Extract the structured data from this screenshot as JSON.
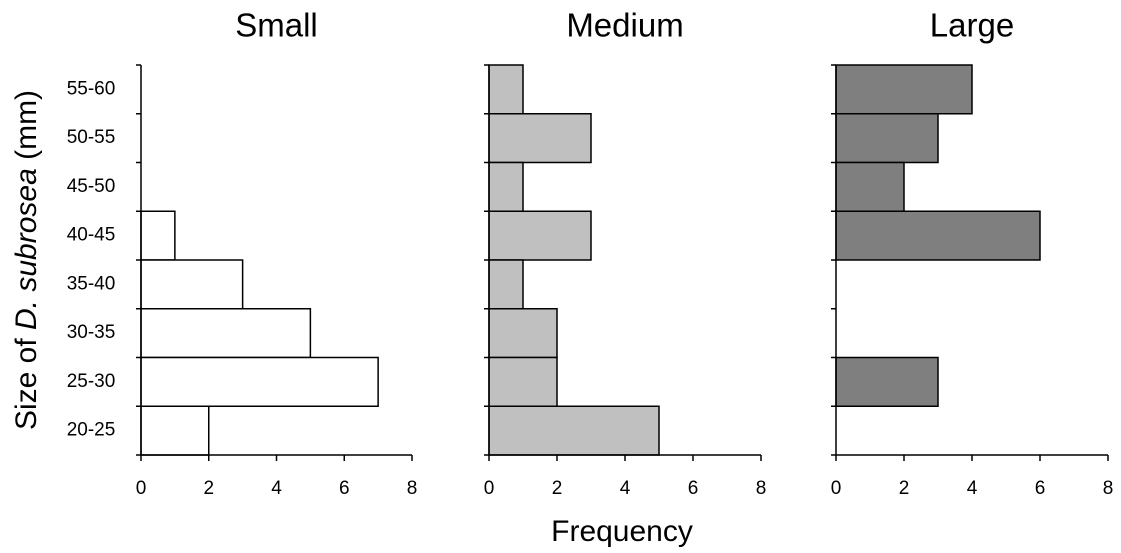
{
  "chart_data": [
    {
      "type": "bar",
      "orientation": "horizontal",
      "title": "Small",
      "categories": [
        "55-60",
        "50-55",
        "45-50",
        "40-45",
        "35-40",
        "30-35",
        "25-30",
        "20-25"
      ],
      "values": [
        0,
        0,
        0,
        1,
        3,
        5,
        7,
        2
      ],
      "color": "#ffffff",
      "xlim": [
        0,
        8
      ],
      "xticks": [
        0,
        2,
        4,
        6,
        8
      ]
    },
    {
      "type": "bar",
      "orientation": "horizontal",
      "title": "Medium",
      "values": [
        1,
        3,
        1,
        3,
        1,
        2,
        2,
        5
      ],
      "color": "#c0c0c0",
      "xlim": [
        0,
        8
      ],
      "xticks": [
        0,
        2,
        4,
        6,
        8
      ]
    },
    {
      "type": "bar",
      "orientation": "horizontal",
      "title": "Large",
      "values": [
        4,
        3,
        2,
        6,
        0,
        0,
        3,
        0
      ],
      "color": "#7f7f7f",
      "xlim": [
        0,
        8
      ],
      "xticks": [
        0,
        2,
        4,
        6,
        8
      ]
    }
  ],
  "x_label": "Frequency",
  "y_label": [
    "Size of ",
    "D. subrosea",
    " (mm)"
  ]
}
